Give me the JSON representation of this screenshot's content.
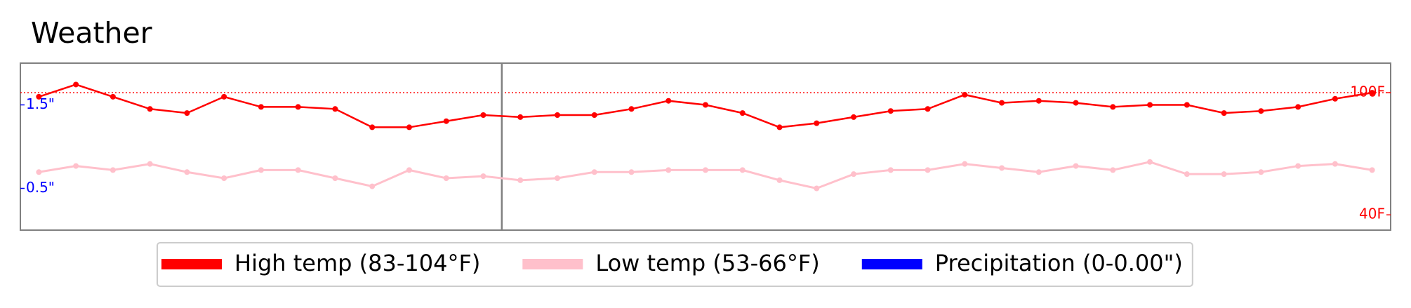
{
  "chart_data": {
    "type": "line",
    "title": "Weather",
    "x": [
      0,
      1,
      2,
      3,
      4,
      5,
      6,
      7,
      8,
      9,
      10,
      11,
      12,
      13,
      14,
      15,
      16,
      17,
      18,
      19,
      20,
      21,
      22,
      23,
      24,
      25,
      26,
      27,
      28,
      29,
      30,
      31,
      32,
      33,
      34,
      35,
      36
    ],
    "xlim": [
      -0.5,
      36.5
    ],
    "series": [
      {
        "name": "High temp (83-104°F)",
        "color": "#ff0000",
        "values": [
          98,
          104,
          98,
          92,
          90,
          98,
          93,
          93,
          92,
          83,
          83,
          86,
          89,
          88,
          89,
          89,
          92,
          96,
          94,
          90,
          83,
          85,
          88,
          91,
          92,
          99,
          95,
          96,
          95,
          93,
          94,
          94,
          90,
          91,
          93,
          97,
          100
        ]
      },
      {
        "name": "Low temp (53-66°F)",
        "color": "#ffc0cb",
        "values": [
          61,
          64,
          62,
          65,
          61,
          58,
          62,
          62,
          58,
          54,
          62,
          58,
          59,
          57,
          58,
          61,
          61,
          62,
          62,
          62,
          57,
          53,
          60,
          62,
          62,
          65,
          63,
          61,
          64,
          62,
          66,
          60,
          60,
          61,
          64,
          65,
          62
        ]
      },
      {
        "name": "Precipitation (0-0.00\")",
        "color": "#0000ff",
        "axis": "y2",
        "values": [
          0,
          0,
          0,
          0,
          0,
          0,
          0,
          0,
          0,
          0,
          0,
          0,
          0,
          0,
          0,
          0,
          0,
          0,
          0,
          0,
          0,
          0,
          0,
          0,
          0,
          0,
          0,
          0,
          0,
          0,
          0,
          0,
          0,
          0,
          0,
          0,
          0
        ]
      }
    ],
    "ylim": [
      32.5,
      114.5
    ],
    "yticks": [
      {
        "value": 40,
        "label": "40F"
      },
      {
        "value": 100,
        "label": "100F"
      }
    ],
    "y2lim": [
      0,
      2
    ],
    "y2ticks": [
      {
        "value": 0.5,
        "label": "0.5\""
      },
      {
        "value": 1.5,
        "label": "1.5\""
      }
    ],
    "hline": 100,
    "vline": 12.5,
    "legend": "bottom"
  }
}
